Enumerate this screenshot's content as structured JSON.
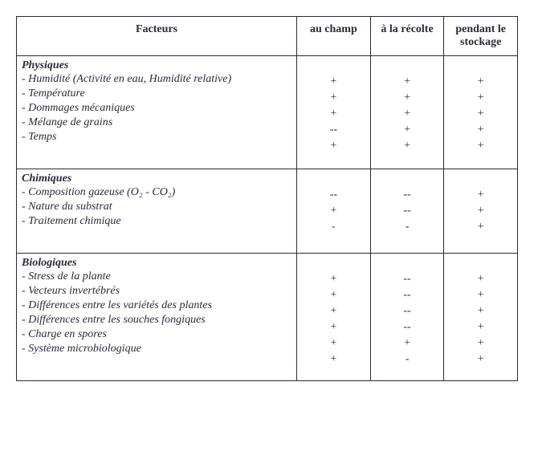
{
  "headers": {
    "facteurs": "Facteurs",
    "col1": "au champ",
    "col2": "à la récolte",
    "col3": "pendant le stockage"
  },
  "sections": [
    {
      "title": "Physiques",
      "rows": [
        {
          "label": "- Humidité (Activité en eau, Humidité relative)",
          "c1": "+",
          "c2": "+",
          "c3": "+"
        },
        {
          "label": "- Température",
          "c1": "+",
          "c2": "+",
          "c3": "+"
        },
        {
          "label": "- Dommages mécaniques",
          "c1": "+",
          "c2": "+",
          "c3": "+"
        },
        {
          "label": "- Mélange de grains",
          "c1": "--",
          "c2": "+",
          "c3": "+"
        },
        {
          "label": "- Temps",
          "c1": "+",
          "c2": "+",
          "c3": "+"
        }
      ]
    },
    {
      "title": "Chimiques",
      "rows": [
        {
          "label": "- Composition gazeuse (O₂ - CO₂)",
          "c1": "--",
          "c2": "--",
          "c3": "+"
        },
        {
          "label": "- Nature du substrat",
          "c1": "+",
          "c2": "--",
          "c3": "+"
        },
        {
          "label": "- Traitement chimique",
          "c1": "-",
          "c2": "-",
          "c3": "+"
        }
      ]
    },
    {
      "title": "Biologiques",
      "rows": [
        {
          "label": "- Stress de la plante",
          "c1": "+",
          "c2": "--",
          "c3": "+"
        },
        {
          "label": "- Vecteurs invertébrés",
          "c1": "+",
          "c2": "--",
          "c3": "+"
        },
        {
          "label": "- Différences entre les variétés des plantes",
          "c1": "+",
          "c2": "--",
          "c3": "+"
        },
        {
          "label": "- Différences entre les souches fongiques",
          "c1": "+",
          "c2": "--",
          "c3": "+"
        },
        {
          "label": "- Charge en spores",
          "c1": "+",
          "c2": "+",
          "c3": "+"
        },
        {
          "label": "- Système microbiologique",
          "c1": "+",
          "c2": "-",
          "c3": "+"
        }
      ]
    }
  ]
}
